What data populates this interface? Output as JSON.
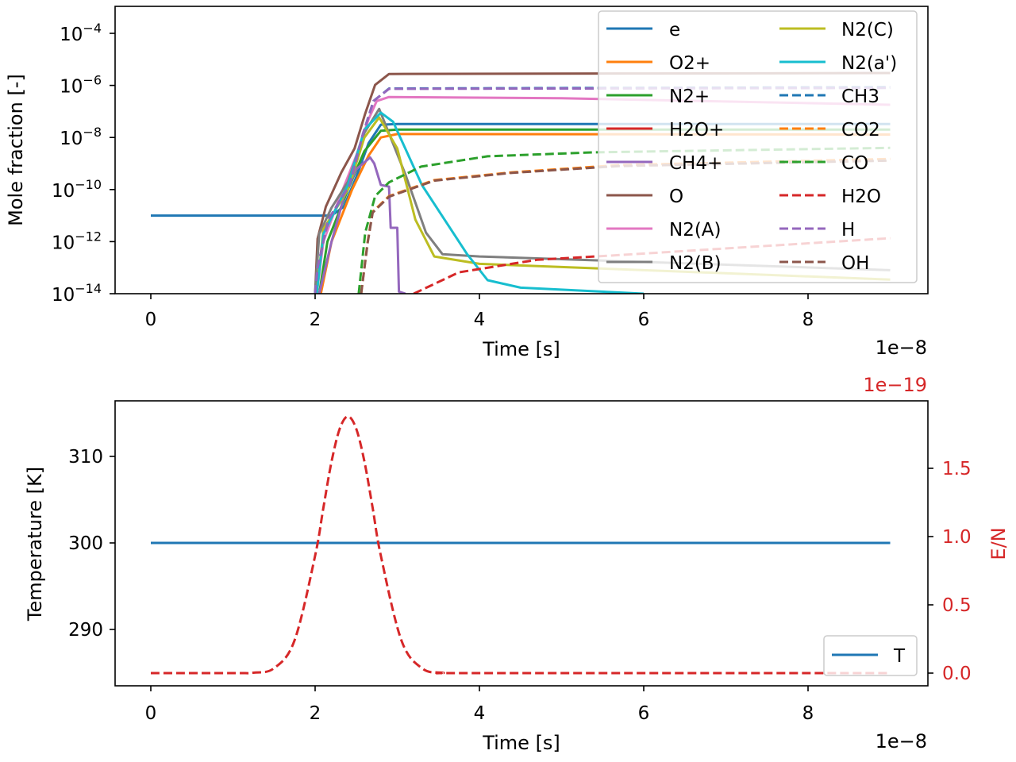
{
  "chart_data": [
    {
      "type": "line",
      "xlabel": "Time [s]",
      "x_offset_label": "1e−8",
      "ylabel": "Mole fraction [-]",
      "yscale": "log",
      "xlim": [
        -0.44,
        9.44
      ],
      "ylim": [
        1e-14,
        0.0011
      ],
      "x_unit_scale": 1e-08,
      "xticks": [
        0,
        2,
        4,
        6,
        8
      ],
      "xtick_labels": [
        "0",
        "2",
        "4",
        "6",
        "8"
      ],
      "yticks": [
        -4,
        -6,
        -8,
        -10,
        -12,
        -14
      ],
      "ytick_base": "10",
      "ytick_exponents": [
        "−4",
        "−6",
        "−8",
        "−10",
        "−12",
        "−14"
      ],
      "grid": false,
      "legend": {
        "placement": "top-right",
        "columns": 2
      },
      "series": [
        {
          "name": "e",
          "color": "#1f77b4",
          "dash": false,
          "points": [
            [
              0,
              1e-11
            ],
            [
              2.2,
              1e-11
            ],
            [
              2.35,
              2.2e-11
            ],
            [
              2.5,
              3e-10
            ],
            [
              2.65,
              6e-09
            ],
            [
              2.8,
              3.1e-08
            ],
            [
              3.0,
              3.3e-08
            ],
            [
              9,
              3.3e-08
            ]
          ]
        },
        {
          "name": "O2+",
          "color": "#ff7f0e",
          "dash": false,
          "points": [
            [
              2.07,
              1e-14
            ],
            [
              2.2,
              1e-12
            ],
            [
              2.45,
              1e-10
            ],
            [
              2.65,
              2e-09
            ],
            [
              2.8,
              1e-08
            ],
            [
              3.0,
              1.35e-08
            ],
            [
              9,
              1.3e-08
            ]
          ]
        },
        {
          "name": "N2+",
          "color": "#2ca02c",
          "dash": false,
          "points": [
            [
              2.05,
              1e-14
            ],
            [
              2.15,
              1e-12
            ],
            [
              2.4,
              1e-10
            ],
            [
              2.6,
              3e-09
            ],
            [
              2.8,
              1.8e-08
            ],
            [
              3.0,
              2e-08
            ],
            [
              9,
              2e-08
            ]
          ]
        },
        {
          "name": "H2O+",
          "color": "#d62728",
          "dash": false,
          "points": []
        },
        {
          "name": "CH4+",
          "color": "#9467bd",
          "dash": false,
          "points": [
            [
              2.05,
              1e-14
            ],
            [
              2.2,
              1e-12
            ],
            [
              2.35,
              5e-11
            ],
            [
              2.5,
              6e-10
            ],
            [
              2.67,
              1.7e-09
            ],
            [
              2.72,
              1e-09
            ],
            [
              2.8,
              1.5e-10
            ],
            [
              2.9,
              1.3e-10
            ],
            [
              2.92,
              3.4e-12
            ],
            [
              3.0,
              3.4e-12
            ],
            [
              3.02,
              1.2e-14
            ],
            [
              3.1,
              1e-14
            ]
          ]
        },
        {
          "name": "O",
          "color": "#8c564b",
          "dash": false,
          "points": [
            [
              2.0,
              1e-14
            ],
            [
              2.03,
              1.3e-12
            ],
            [
              2.13,
              2.2e-11
            ],
            [
              2.32,
              4.6e-10
            ],
            [
              2.48,
              3.8e-09
            ],
            [
              2.61,
              8.3e-08
            ],
            [
              2.73,
              1.05e-06
            ],
            [
              2.9,
              2.75e-06
            ],
            [
              9,
              3e-06
            ]
          ]
        },
        {
          "name": "N2(A)",
          "color": "#e377c2",
          "dash": false,
          "points": [
            [
              2.02,
              1e-14
            ],
            [
              2.1,
              1e-12
            ],
            [
              2.3,
              5e-11
            ],
            [
              2.5,
              2e-09
            ],
            [
              2.65,
              5e-08
            ],
            [
              2.75,
              2.5e-07
            ],
            [
              2.9,
              3.6e-07
            ],
            [
              5,
              3.2e-07
            ],
            [
              9,
              1.8e-07
            ]
          ]
        },
        {
          "name": "N2(B)",
          "color": "#7f7f7f",
          "dash": false,
          "points": [
            [
              2.0,
              1e-14
            ],
            [
              2.05,
              2e-12
            ],
            [
              2.2,
              2e-11
            ],
            [
              2.4,
              2e-10
            ],
            [
              2.6,
              1.5e-08
            ],
            [
              2.78,
              1.25e-07
            ],
            [
              3.1,
              3.7e-10
            ],
            [
              3.35,
              2.2e-12
            ],
            [
              3.55,
              3.3e-13
            ],
            [
              4,
              2.7e-13
            ],
            [
              9,
              8e-14
            ]
          ]
        },
        {
          "name": "N2(C)",
          "color": "#bcbd22",
          "dash": false,
          "points": [
            [
              2.02,
              1e-14
            ],
            [
              2.1,
              3e-12
            ],
            [
              2.4,
              1e-10
            ],
            [
              2.6,
              1e-08
            ],
            [
              2.78,
              5.9e-08
            ],
            [
              3.0,
              3.8e-09
            ],
            [
              3.22,
              7e-12
            ],
            [
              3.45,
              2.7e-13
            ],
            [
              4,
              1.4e-13
            ],
            [
              9,
              3.5e-14
            ]
          ]
        },
        {
          "name": "N2(a')",
          "color": "#17becf",
          "dash": false,
          "points": [
            [
              2.02,
              1e-14
            ],
            [
              2.1,
              2e-12
            ],
            [
              2.4,
              1.5e-10
            ],
            [
              2.6,
              2e-08
            ],
            [
              2.8,
              9e-08
            ],
            [
              2.95,
              4e-08
            ],
            [
              3.3,
              1.5e-10
            ],
            [
              3.85,
              3.3e-13
            ],
            [
              4.1,
              3.3e-14
            ],
            [
              4.5,
              1.7e-14
            ],
            [
              6,
              1e-14
            ]
          ]
        },
        {
          "name": "CH3",
          "color": "#1f77b4",
          "dash": true,
          "points": [
            [
              2.0,
              1e-14
            ],
            [
              2.03,
              1e-13
            ],
            [
              2.16,
              7e-12
            ],
            [
              2.42,
              1.5e-10
            ],
            [
              2.58,
              1.3e-08
            ],
            [
              2.71,
              2.5e-07
            ],
            [
              2.9,
              7.6e-07
            ],
            [
              9,
              8.5e-07
            ]
          ]
        },
        {
          "name": "CO2",
          "color": "#ff7f0e",
          "dash": true,
          "points": [
            [
              2.56,
              1e-14
            ],
            [
              2.64,
              1e-12
            ],
            [
              2.7,
              1.4e-11
            ],
            [
              2.9,
              5.6e-11
            ],
            [
              3.45,
              2.3e-10
            ],
            [
              4.4,
              4.6e-10
            ],
            [
              5.7,
              8.7e-10
            ],
            [
              9,
              1.5e-09
            ]
          ]
        },
        {
          "name": "CO",
          "color": "#2ca02c",
          "dash": true,
          "points": [
            [
              2.53,
              1e-14
            ],
            [
              2.61,
              2.2e-12
            ],
            [
              2.73,
              5.6e-11
            ],
            [
              2.9,
              1.9e-10
            ],
            [
              3.29,
              7.6e-10
            ],
            [
              4.1,
              1.9e-09
            ],
            [
              5.4,
              2.7e-09
            ],
            [
              9,
              4e-09
            ]
          ]
        },
        {
          "name": "H2O",
          "color": "#d62728",
          "dash": true,
          "points": [
            [
              3.2,
              1e-14
            ],
            [
              3.75,
              6.6e-14
            ],
            [
              4.7,
              2e-13
            ],
            [
              5.6,
              2.9e-13
            ],
            [
              9,
              1.35e-12
            ]
          ]
        },
        {
          "name": "H",
          "color": "#9467bd",
          "dash": true,
          "points": [
            [
              2.0,
              1e-14
            ],
            [
              2.03,
              1e-13
            ],
            [
              2.16,
              7e-12
            ],
            [
              2.42,
              1.5e-10
            ],
            [
              2.58,
              1.3e-08
            ],
            [
              2.71,
              2.5e-07
            ],
            [
              2.9,
              7.4e-07
            ],
            [
              9,
              8e-07
            ]
          ]
        },
        {
          "name": "OH",
          "color": "#8c564b",
          "dash": true,
          "points": [
            [
              2.56,
              1e-14
            ],
            [
              2.64,
              9e-13
            ],
            [
              2.7,
              1.3e-11
            ],
            [
              2.9,
              5.3e-11
            ],
            [
              3.45,
              2.2e-10
            ],
            [
              4.4,
              4.4e-10
            ],
            [
              5.7,
              8e-10
            ],
            [
              9,
              1.3e-09
            ]
          ]
        }
      ]
    },
    {
      "type": "line",
      "xlabel": "Time [s]",
      "x_offset_label": "1e−8",
      "ylabel": "Temperature [K]",
      "ylabel_right": "E/N",
      "y_right_offset_label": "1e−19",
      "right_axis_color": "#d62728",
      "xlim": [
        -0.44,
        9.44
      ],
      "ylim": [
        283.5,
        316.4
      ],
      "ylim_right": [
        -0.093,
        1.99
      ],
      "xticks": [
        0,
        2,
        4,
        6,
        8
      ],
      "xtick_labels": [
        "0",
        "2",
        "4",
        "6",
        "8"
      ],
      "yticks": [
        290,
        300,
        310
      ],
      "ytick_labels": [
        "290",
        "300",
        "310"
      ],
      "yticks_right": [
        0.0,
        0.5,
        1.0,
        1.5
      ],
      "ytick_labels_right": [
        "0.0",
        "0.5",
        "1.0",
        "1.5"
      ],
      "grid": false,
      "legend": {
        "placement": "lower-right"
      },
      "series": [
        {
          "name": "T",
          "axis": "left",
          "color": "#1f77b4",
          "dash": false,
          "x": [
            0,
            9
          ],
          "values": [
            300,
            300
          ]
        },
        {
          "axis": "right",
          "color": "#d62728",
          "dash": true,
          "x": [
            0,
            1,
            1.25,
            1.5,
            1.75,
            2.0,
            2.1,
            2.2,
            2.3,
            2.4,
            2.5,
            2.6,
            2.7,
            2.8,
            3.05,
            3.3,
            3.55,
            4,
            9
          ],
          "values": [
            0,
            0.0001,
            0.003,
            0.036,
            0.24,
            0.86,
            1.21,
            1.55,
            1.79,
            1.88,
            1.79,
            1.55,
            1.21,
            0.86,
            0.24,
            0.036,
            0.003,
            0,
            0
          ]
        }
      ]
    }
  ]
}
